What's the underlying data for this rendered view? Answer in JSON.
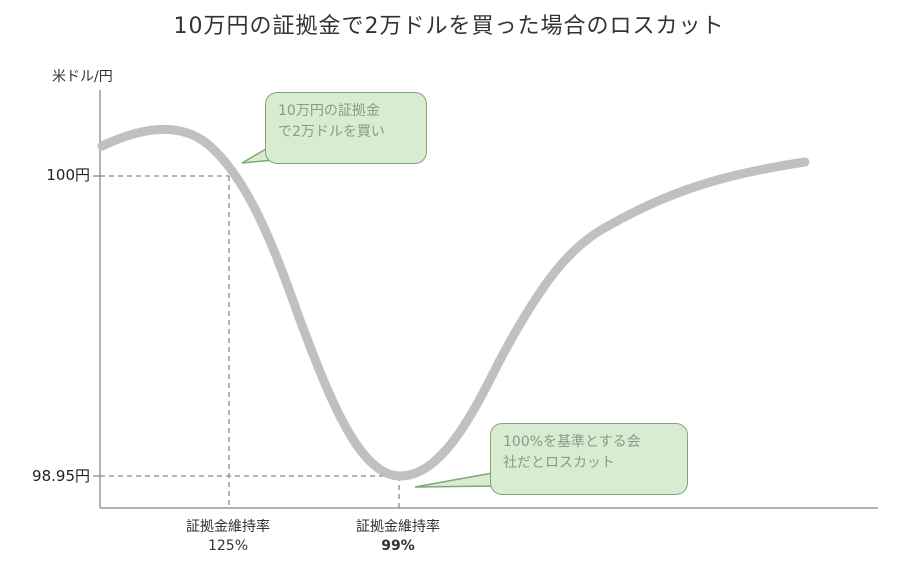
{
  "title": "10万円の証拠金で2万ドルを買った場合のロスカット",
  "chart_data": {
    "type": "line",
    "ylabel": "米ドル/円",
    "y_ticks": [
      {
        "value": 100,
        "label": "100円"
      },
      {
        "value": 98.95,
        "label": "98.95円"
      }
    ],
    "x_ticks": [
      {
        "label": "証拠金維持率",
        "value_label": "125%",
        "bold": false
      },
      {
        "label": "証拠金維持率",
        "value_label": "99%",
        "bold": true
      }
    ],
    "annotations": [
      {
        "text_line1": "10万円の証拠金",
        "text_line2": "で2万ドルを買い"
      },
      {
        "text_line1": "100%を基準とする会",
        "text_line2": "社だとロスカット"
      }
    ],
    "colors": {
      "line": "#c0c0c0",
      "callout_fill": "#d9ecd2",
      "callout_border": "#7fa77a",
      "guide": "#888888"
    },
    "grid": false
  }
}
